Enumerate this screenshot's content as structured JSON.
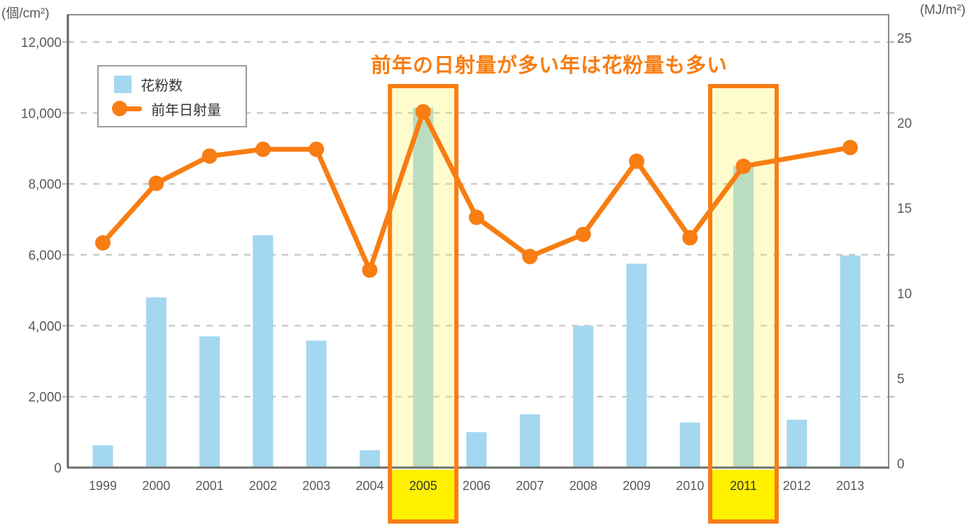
{
  "title": {
    "text": "前年の日射量が多い年は花粉量も多い",
    "color": "#f87d12"
  },
  "axis_units": {
    "left": "(個/cm²)",
    "right": "(MJ/m²)"
  },
  "legend": {
    "items": [
      {
        "label": "花粉数",
        "type": "bar",
        "color": "#a4d7f0"
      },
      {
        "label": "前年日射量",
        "type": "line",
        "color": "#f87d12"
      }
    ]
  },
  "chart_data": {
    "type": "bar",
    "subtype": "bar+line combo, dual axis",
    "title": "前年の日射量が多い年は花粉量も多い",
    "categories": [
      "1999",
      "2000",
      "2001",
      "2002",
      "2003",
      "2004",
      "2005",
      "2006",
      "2007",
      "2008",
      "2009",
      "2010",
      "2011",
      "2012",
      "2013"
    ],
    "series": [
      {
        "name": "花粉数",
        "chart": "bar",
        "axis": "left",
        "unit": "個/cm²",
        "color": "#a4d7f0",
        "values": [
          630,
          4800,
          3700,
          6550,
          3580,
          490,
          10150,
          1000,
          1500,
          4000,
          5750,
          1270,
          8500,
          1350,
          5980
        ]
      },
      {
        "name": "前年日射量",
        "chart": "line",
        "axis": "right",
        "unit": "MJ/m²",
        "color": "#f87d12",
        "values": [
          13.2,
          16.7,
          18.3,
          18.7,
          18.7,
          11.6,
          20.9,
          14.7,
          12.4,
          13.7,
          18.0,
          13.5,
          17.7,
          null,
          18.8
        ],
        "note": "no marker at 2012; line runs straight from 2011 to 2013"
      }
    ],
    "left_axis": {
      "label": "(個/cm²)",
      "min": 0,
      "max": 12000,
      "tick_step": 2000,
      "tick_labels": [
        "0",
        "2,000",
        "4,000",
        "6,000",
        "8,000",
        "10,000",
        "12,000"
      ]
    },
    "right_axis": {
      "label": "(MJ/m²)",
      "min": 0,
      "max": 25,
      "tick_step": 5,
      "tick_labels": [
        "0",
        "5",
        "10",
        "15",
        "20",
        "25"
      ]
    },
    "grid": "horizontal dashed gridlines",
    "legend_position": "top-left inside plot",
    "annotation": {
      "text": "前年の日射量が多い年は花粉量も多い",
      "color": "#f87d12"
    },
    "highlighted_years": [
      "2005",
      "2011"
    ],
    "highlight_style": {
      "border_color": "#f87d12",
      "plot_fill": "translucent pale yellow",
      "label_bg": "#fff100"
    }
  }
}
